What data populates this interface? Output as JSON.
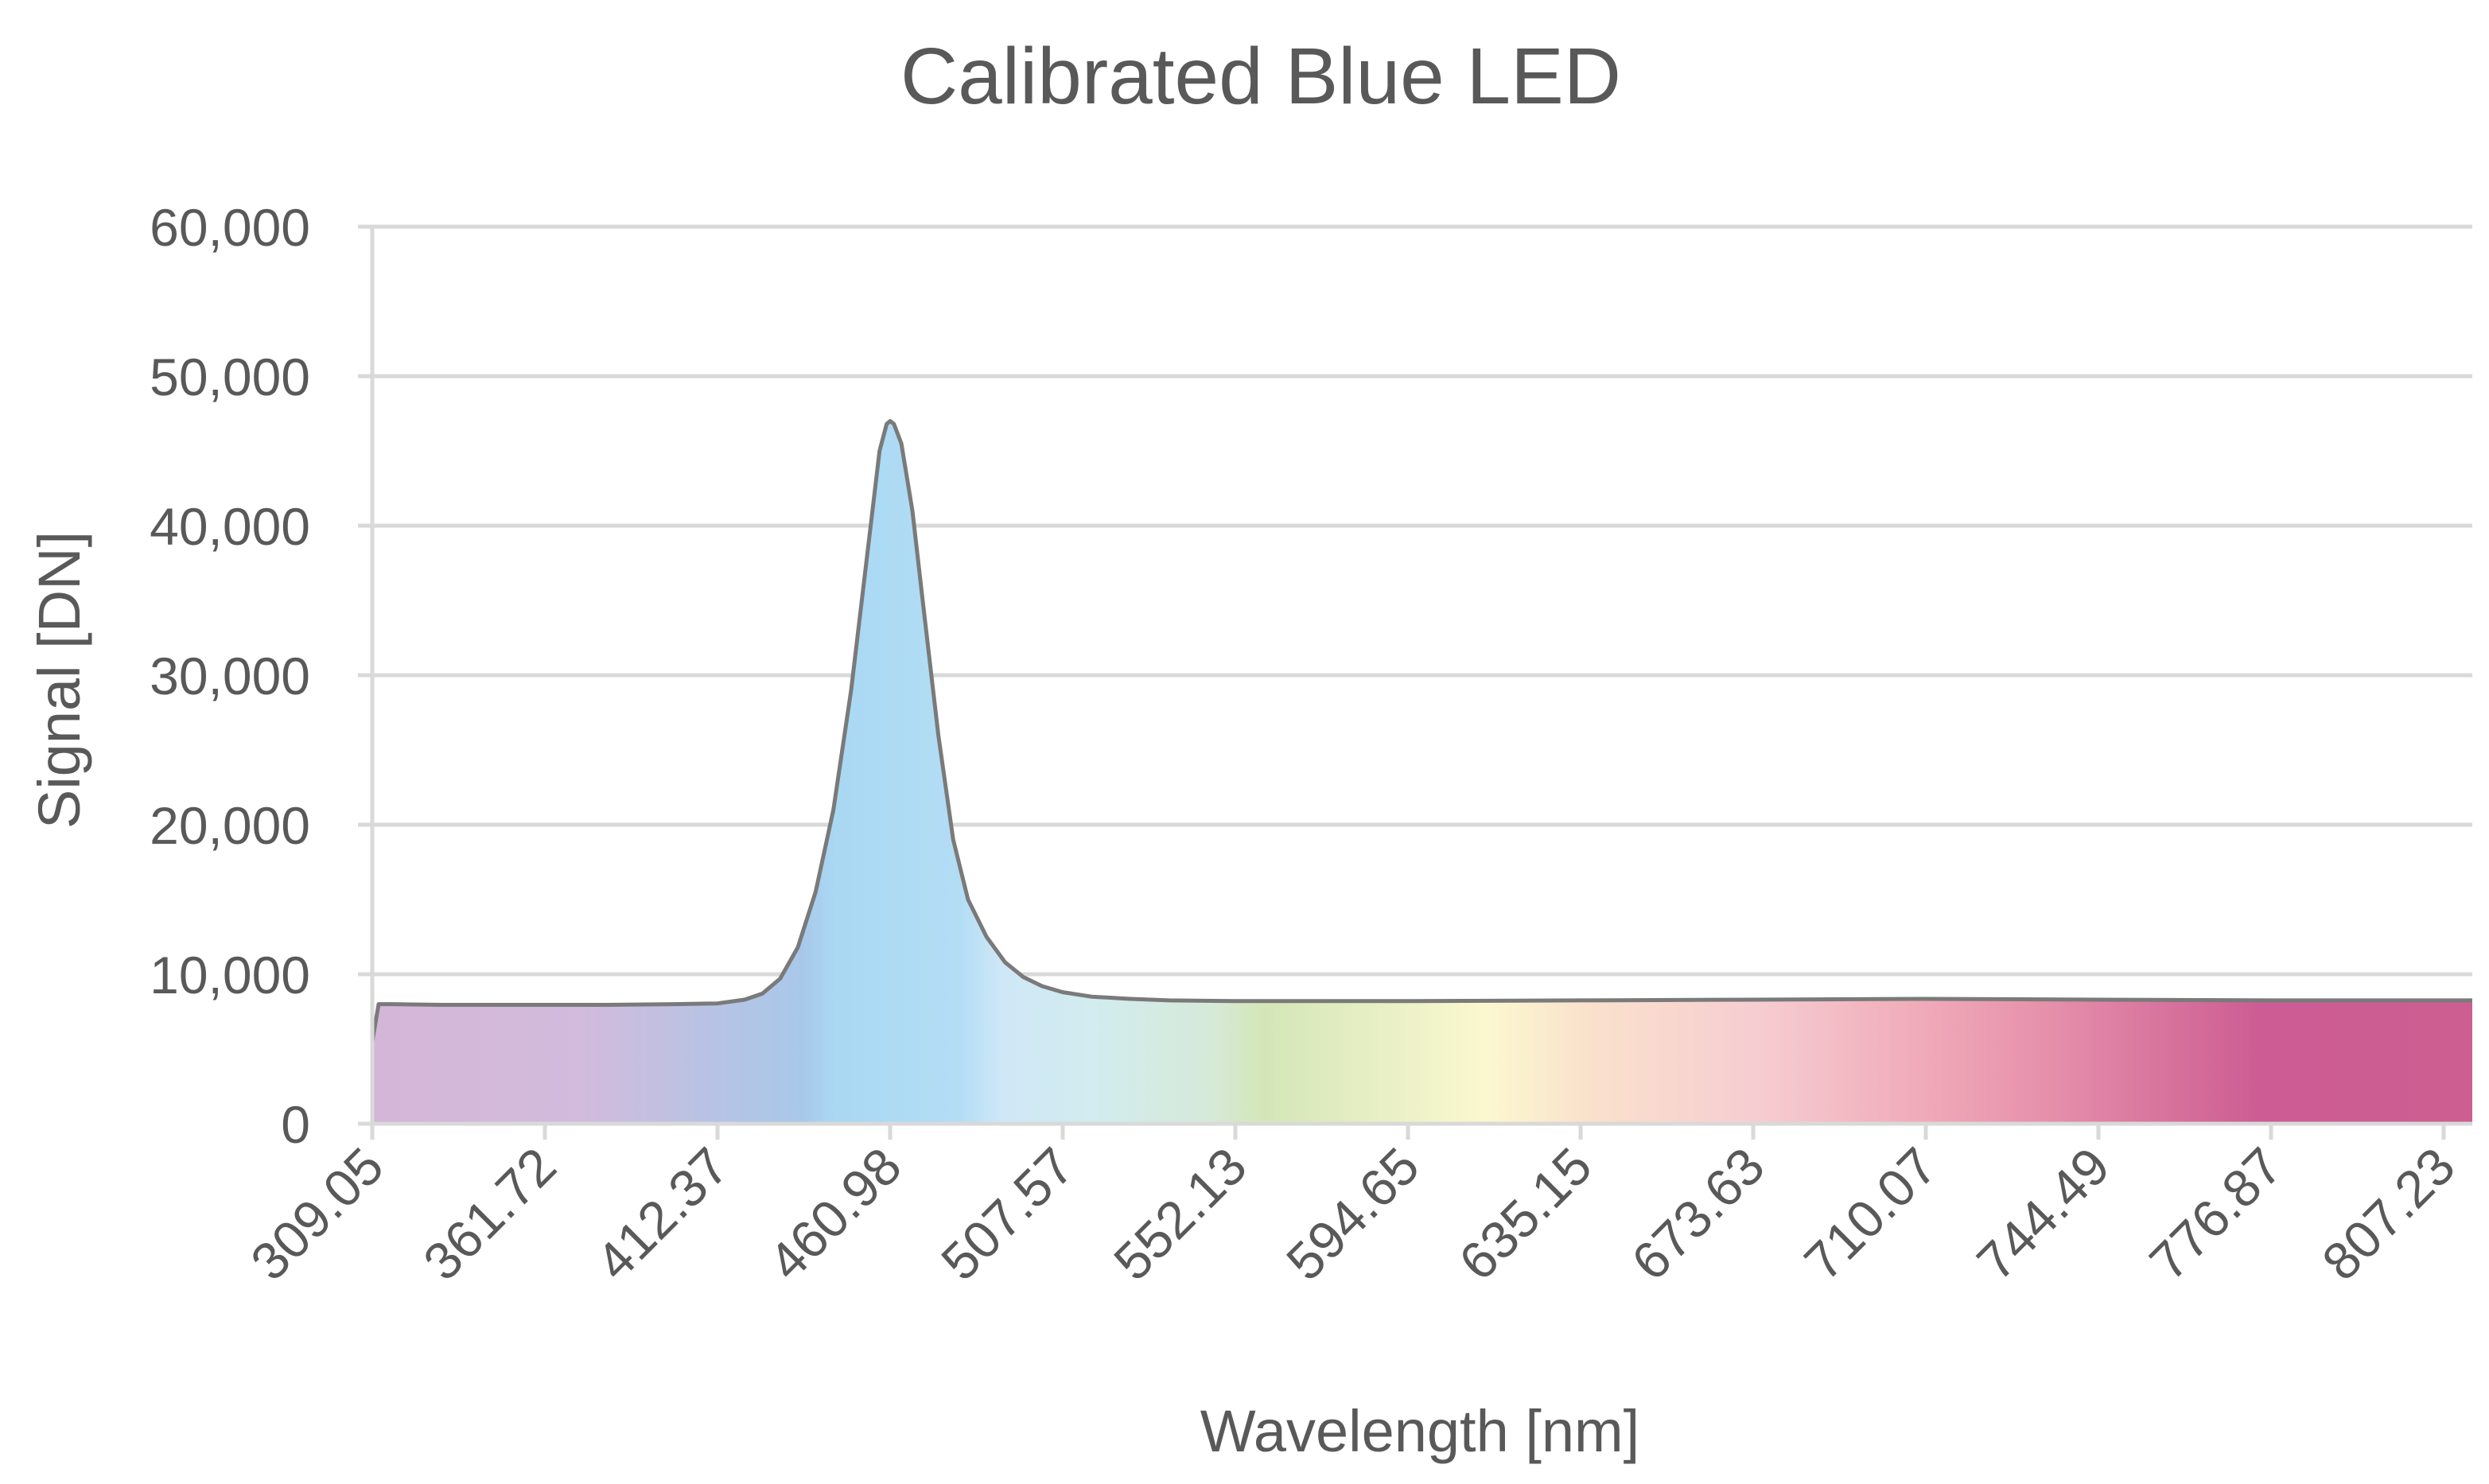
{
  "chart_data": {
    "type": "area",
    "title": "Calibrated Blue LED",
    "xlabel": "Wavelength [nm]",
    "ylabel": "Signal [DN]",
    "ylim": [
      0,
      60000
    ],
    "yticks": [
      0,
      10000,
      20000,
      30000,
      40000,
      50000,
      60000
    ],
    "ytick_labels": [
      "0",
      "10,000",
      "20,000",
      "30,000",
      "40,000",
      "50,000",
      "60,000"
    ],
    "xlim": [
      309.05,
      815.0
    ],
    "xtick_labels": [
      "309.05",
      "361.72",
      "412.37",
      "460.98",
      "507.57",
      "552.13",
      "594.65",
      "635.15",
      "673.63",
      "710.07",
      "744.49",
      "776.87",
      "807.23"
    ],
    "grid": true,
    "fill": "visible-spectrum gradient",
    "series": [
      {
        "name": "Signal",
        "x": [
          309.05,
          311.0,
          315.0,
          330.0,
          361.72,
          380.0,
          400.0,
          412.37,
          420.0,
          425.0,
          430.0,
          435.0,
          440.0,
          445.0,
          450.0,
          453.0,
          456.0,
          458.0,
          460.0,
          461.0,
          462.0,
          464.0,
          467.0,
          470.0,
          474.0,
          478.0,
          482.0,
          487.0,
          492.0,
          497.0,
          502.0,
          507.57,
          515.0,
          525.0,
          535.0,
          552.13,
          594.65,
          635.15,
          673.63,
          710.07,
          744.49,
          776.87,
          807.23,
          815.0
        ],
        "values": [
          5500,
          8000,
          8000,
          7950,
          7950,
          7950,
          8000,
          8050,
          8300,
          8700,
          9700,
          11800,
          15500,
          21000,
          29000,
          35000,
          41000,
          45000,
          46800,
          47000,
          46800,
          45500,
          41000,
          34500,
          26000,
          19000,
          15000,
          12500,
          10800,
          9800,
          9200,
          8800,
          8500,
          8350,
          8250,
          8200,
          8200,
          8250,
          8300,
          8350,
          8300,
          8250,
          8250,
          8250
        ]
      }
    ]
  }
}
